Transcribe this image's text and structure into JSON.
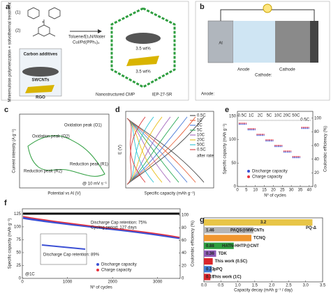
{
  "panel_a": {
    "label": "a",
    "side_text": "Miniemulsion polymerization + solvothermal treatment",
    "monomer_1": "(1)",
    "monomer_2": "(2)",
    "plus": "+",
    "conditions_1": "Toluene/Et₃N/Water",
    "conditions_2": "CuI/Pd(PPh₃)₄",
    "additives_title": "Carbon additives",
    "additive_1": "SWCNTs",
    "additive_2": "RGO",
    "loading_1": "3.5 wt%",
    "loading_2": "3.5 wt%",
    "caption": "Nanostructured CMP",
    "code": "IEP-27-SR"
  },
  "panel_b": {
    "label": "b",
    "electrode": "Al",
    "anode": "Anode",
    "cathode": "Cathode",
    "anode_eq": "Anode:",
    "cathode_eq": "Cathode:"
  },
  "panel_c": {
    "label": "c",
    "ylabel": "Current intensity (A g⁻¹)",
    "xlabel": "Potential vs Al (V)",
    "o1": "Oxidation peak (O1)",
    "o2": "Oxidation peak (O2)",
    "r1": "Reduction peak (R1)",
    "r2": "Reduction peak (R2)",
    "rate": "@ 10 mV s⁻¹"
  },
  "panel_d": {
    "label": "d",
    "ylabel": "E (V)",
    "xlabel": "Specific capacity (mAh g⁻¹)",
    "legend": [
      "0.5C",
      "1C",
      "2C",
      "5C",
      "10C",
      "20C",
      "50C",
      "0.5C"
    ],
    "colors": [
      "#333333",
      "#e4572e",
      "#3b6fd4",
      "#1aa34a",
      "#9b59b6",
      "#e6b800",
      "#17becf",
      "#d62728"
    ],
    "note": "after rate"
  },
  "panel_e": {
    "label": "e",
    "ylabel": "Specific capacity (mAh g⁻¹)",
    "y2label": "Coulombic efficiency (%)",
    "xlabel": "Nº of cycles",
    "xlim": [
      0,
      42
    ],
    "xticks": [
      0,
      5,
      10,
      15,
      20,
      25,
      30,
      35,
      40
    ],
    "ylim": [
      0,
      160
    ],
    "yticks": [
      0,
      50,
      100,
      150
    ],
    "y2lim": [
      0,
      110
    ],
    "y2ticks": [
      0,
      20,
      40,
      60,
      80,
      100
    ],
    "rates": [
      "0.5C",
      "1C",
      "2C",
      "5C",
      "10C",
      "20C",
      "50C",
      "0.5C"
    ],
    "legend": [
      "Discharge capacity",
      "Charge capacity"
    ],
    "colors": [
      "#3b4fd4",
      "#e8323c"
    ]
  },
  "panel_f": {
    "label": "f",
    "ylabel": "Specific capacity (mAh g⁻¹)",
    "y2label": "Coulombic efficiency (%)",
    "xlabel": "Nº of cycles",
    "xlim": [
      0,
      3500
    ],
    "xticks": [
      0,
      1000,
      2000,
      3000
    ],
    "ylim": [
      0,
      135
    ],
    "yticks": [
      0,
      25,
      50,
      75,
      100,
      125
    ],
    "y2lim": [
      0,
      110
    ],
    "y2ticks": [
      0,
      20,
      40,
      60,
      80,
      100
    ],
    "retention": "Discharge Cap retention: 75%",
    "period": "Cycling period: 127 days",
    "inset_retention": "Discharge Cap retention: 89%",
    "rate": "@1C",
    "legend": [
      "Discharge capacity",
      "Charge capacity"
    ],
    "colors": [
      "#3b4fd4",
      "#e8323c"
    ]
  },
  "panel_g": {
    "label": "g",
    "xlabel": "Capacity decay (mAh g⁻¹ / day)",
    "xlim": [
      0,
      3.5
    ],
    "xticks": [
      {
        "value": 0,
        "label": "0.0"
      },
      {
        "value": 0.5,
        "label": "0.5"
      },
      {
        "value": 1,
        "label": "1.0"
      },
      {
        "value": 1.5,
        "label": "1.5"
      },
      {
        "value": 2,
        "label": "2.0"
      },
      {
        "value": 2.5,
        "label": "2.5"
      },
      {
        "value": 3,
        "label": "3.0"
      },
      {
        "value": 3.5,
        "label": "3.5"
      }
    ],
    "categories": [
      "PQ-Δ",
      "PAQS@MWCNTs",
      "TCNQ",
      "HATN-HHTP@CNT",
      "TDK",
      "This work (0.5C)",
      "pPQ",
      "This work (1C)"
    ],
    "values": [
      3.2,
      1.46,
      1.4,
      0.88,
      0.36,
      0.26,
      0.23,
      0.19
    ],
    "value_labels": [
      "3.2",
      "1.46",
      null,
      "0.88",
      "0.36",
      null,
      "0.23",
      "0.19"
    ],
    "colors": [
      "#e8c547",
      "#b5b5b5",
      "#f0962e",
      "#2e9e3f",
      "#8e5bb5",
      "#d9262b",
      "#3f7ed4",
      "#d9262b"
    ]
  }
}
